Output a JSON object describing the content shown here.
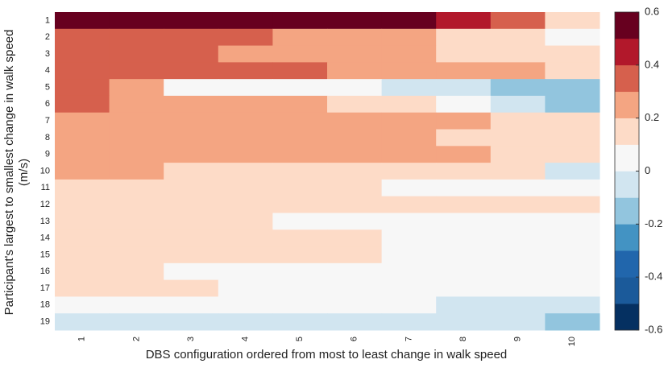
{
  "chart_data": {
    "type": "heatmap",
    "xlabel": "DBS configuration ordered from most to least change in walk speed",
    "ylabel": [
      "Participant's largest to smallest change in walk speed",
      "(m/s)"
    ],
    "x_categories": [
      "1",
      "2",
      "3",
      "4",
      "5",
      "6",
      "7",
      "8",
      "9",
      "10"
    ],
    "y_categories": [
      "1",
      "2",
      "3",
      "4",
      "5",
      "6",
      "7",
      "8",
      "9",
      "10",
      "11",
      "12",
      "13",
      "14",
      "15",
      "16",
      "17",
      "18",
      "19"
    ],
    "z": [
      [
        0.55,
        0.55,
        0.55,
        0.55,
        0.55,
        0.55,
        0.55,
        0.45,
        0.35,
        0.15
      ],
      [
        0.35,
        0.35,
        0.35,
        0.35,
        0.25,
        0.25,
        0.25,
        0.15,
        0.15,
        0.05
      ],
      [
        0.35,
        0.35,
        0.35,
        0.25,
        0.25,
        0.25,
        0.25,
        0.15,
        0.15,
        0.15
      ],
      [
        0.35,
        0.35,
        0.35,
        0.35,
        0.35,
        0.25,
        0.25,
        0.25,
        0.25,
        0.15
      ],
      [
        0.35,
        0.25,
        0.05,
        0.05,
        0.05,
        0.05,
        -0.05,
        -0.05,
        -0.15,
        -0.15
      ],
      [
        0.35,
        0.25,
        0.25,
        0.25,
        0.25,
        0.15,
        0.15,
        0.05,
        -0.05,
        -0.15
      ],
      [
        0.25,
        0.25,
        0.25,
        0.25,
        0.25,
        0.25,
        0.25,
        0.25,
        0.15,
        0.15
      ],
      [
        0.25,
        0.25,
        0.25,
        0.25,
        0.25,
        0.25,
        0.25,
        0.15,
        0.15,
        0.15
      ],
      [
        0.25,
        0.25,
        0.25,
        0.25,
        0.25,
        0.25,
        0.25,
        0.25,
        0.15,
        0.15
      ],
      [
        0.25,
        0.25,
        0.15,
        0.15,
        0.15,
        0.15,
        0.15,
        0.15,
        0.15,
        -0.05
      ],
      [
        0.15,
        0.15,
        0.15,
        0.15,
        0.15,
        0.15,
        0.05,
        0.05,
        0.05,
        0.05
      ],
      [
        0.15,
        0.15,
        0.15,
        0.15,
        0.15,
        0.15,
        0.15,
        0.15,
        0.15,
        0.15
      ],
      [
        0.15,
        0.15,
        0.15,
        0.15,
        0.05,
        0.05,
        0.05,
        0.05,
        0.05,
        0.05
      ],
      [
        0.15,
        0.15,
        0.15,
        0.15,
        0.15,
        0.15,
        0.05,
        0.05,
        0.05,
        0.05
      ],
      [
        0.15,
        0.15,
        0.15,
        0.15,
        0.15,
        0.15,
        0.05,
        0.05,
        0.05,
        0.05
      ],
      [
        0.15,
        0.15,
        0.05,
        0.05,
        0.05,
        0.05,
        0.05,
        0.05,
        0.05,
        0.05
      ],
      [
        0.15,
        0.15,
        0.15,
        0.05,
        0.05,
        0.05,
        0.05,
        0.05,
        0.05,
        0.05
      ],
      [
        0.05,
        0.05,
        0.05,
        0.05,
        0.05,
        0.05,
        0.05,
        -0.05,
        -0.05,
        -0.05
      ],
      [
        -0.05,
        -0.05,
        -0.05,
        -0.05,
        -0.05,
        -0.05,
        -0.05,
        -0.05,
        -0.05,
        -0.15
      ]
    ],
    "clim": [
      -0.6,
      0.6
    ],
    "colors": [
      "#053061",
      "#1b5a9a",
      "#2166ac",
      "#4393c3",
      "#92c5de",
      "#d1e5f0",
      "#f7f7f7",
      "#fddbc7",
      "#f4a582",
      "#d6604d",
      "#b2182b",
      "#67001f"
    ],
    "cticks": [
      -0.6,
      -0.4,
      -0.2,
      0,
      0.2,
      0.4,
      0.6
    ]
  }
}
